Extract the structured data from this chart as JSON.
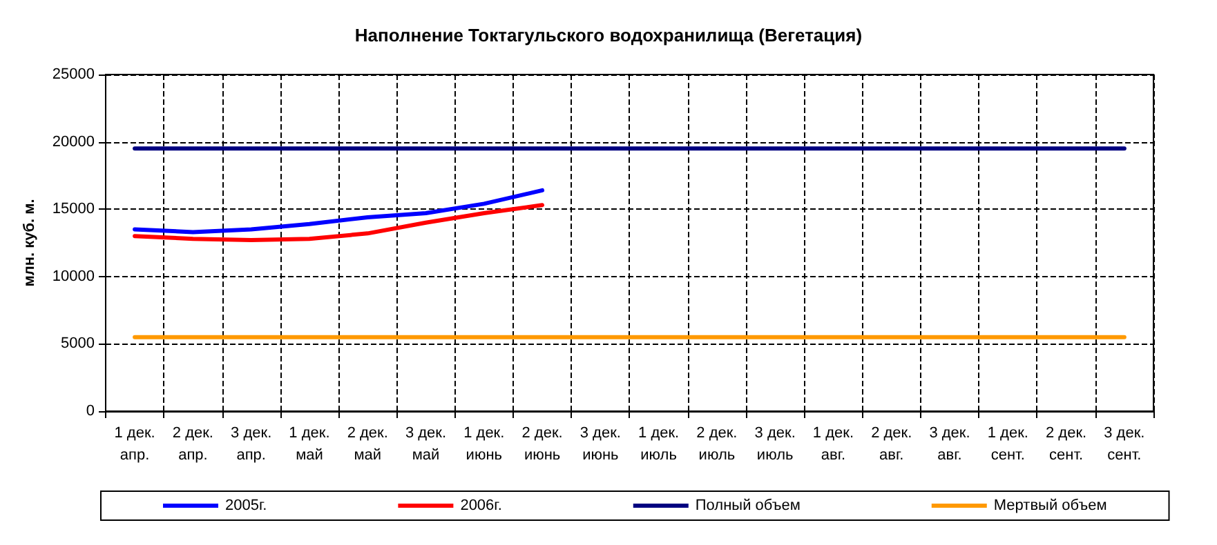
{
  "chart_data": {
    "type": "line",
    "title": "Наполнение Токтагульского водохранилища (Вегетация)",
    "ylabel": "млн. куб. м.",
    "categories": [
      "1 дек.\nапр.",
      "2 дек.\nапр.",
      "3 дек.\nапр.",
      "1 дек.\nмай",
      "2 дек.\nмай",
      "3 дек.\nмай",
      "1 дек.\nиюнь",
      "2 дек.\nиюнь",
      "3 дек.\nиюнь",
      "1 дек.\nиюль",
      "2 дек.\nиюль",
      "3 дек.\nиюль",
      "1 дек.\nавг.",
      "2 дек.\nавг.",
      "3 дек.\nавг.",
      "1 дек.\nсент.",
      "2 дек.\nсент.",
      "3 дек.\nсент."
    ],
    "series": [
      {
        "name": "2005г.",
        "color": "#0000ff",
        "values": [
          13500,
          13300,
          13500,
          13900,
          14400,
          14700,
          15400,
          16400,
          null,
          null,
          null,
          null,
          null,
          null,
          null,
          null,
          null,
          null
        ]
      },
      {
        "name": "2006г.",
        "color": "#ff0000",
        "values": [
          13000,
          12800,
          12700,
          12800,
          13200,
          14000,
          14700,
          15300,
          null,
          null,
          null,
          null,
          null,
          null,
          null,
          null,
          null,
          null
        ]
      },
      {
        "name": "Полный объем",
        "color": "#000080",
        "values": [
          19500,
          19500,
          19500,
          19500,
          19500,
          19500,
          19500,
          19500,
          19500,
          19500,
          19500,
          19500,
          19500,
          19500,
          19500,
          19500,
          19500,
          19500
        ]
      },
      {
        "name": "Мертвый объем",
        "color": "#ff9900",
        "values": [
          5500,
          5500,
          5500,
          5500,
          5500,
          5500,
          5500,
          5500,
          5500,
          5500,
          5500,
          5500,
          5500,
          5500,
          5500,
          5500,
          5500,
          5500
        ]
      }
    ],
    "ylim": [
      0,
      25000
    ],
    "yticks": [
      0,
      5000,
      10000,
      15000,
      20000,
      25000
    ],
    "grid": true,
    "legend": "bottom",
    "marker": "none",
    "line_style": "solid"
  }
}
